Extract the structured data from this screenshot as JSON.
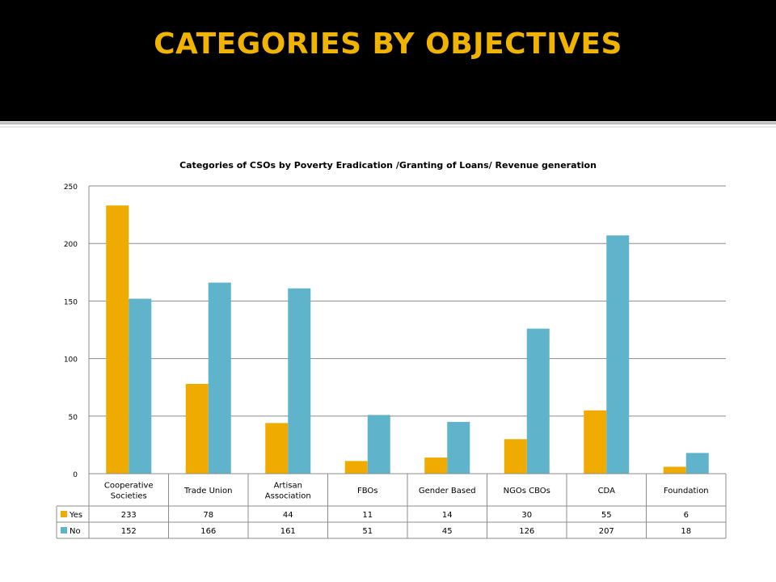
{
  "slide": {
    "title": "CATEGORIES BY OBJECTIVES"
  },
  "colors": {
    "header_bg": "#000000",
    "title": "#f0b400",
    "yes": "#f0ab00",
    "no": "#5fb4cc"
  },
  "chart_data": {
    "type": "bar",
    "title": "Categories of CSOs by Poverty Eradication /Granting of Loans/ Revenue generation",
    "xlabel": "",
    "ylabel": "",
    "ylim": [
      0,
      250
    ],
    "yticks": [
      0,
      50,
      100,
      150,
      200,
      250
    ],
    "grid": true,
    "legend": "data-table",
    "categories": [
      "Cooperative Societies",
      "Trade Union",
      "Artisan Association",
      "FBOs",
      "Gender Based",
      "NGOs CBOs",
      "CDA",
      "Foundation"
    ],
    "category_lines": [
      [
        "Cooperative",
        "Societies"
      ],
      [
        "Trade Union"
      ],
      [
        "Artisan",
        "Association"
      ],
      [
        "FBOs"
      ],
      [
        "Gender Based"
      ],
      [
        "NGOs CBOs"
      ],
      [
        "CDA"
      ],
      [
        "Foundation"
      ]
    ],
    "series": [
      {
        "name": "Yes",
        "color": "#f0ab00",
        "values": [
          233,
          78,
          44,
          11,
          14,
          30,
          55,
          6
        ]
      },
      {
        "name": "No",
        "color": "#5fb4cc",
        "values": [
          152,
          166,
          161,
          51,
          45,
          126,
          207,
          18
        ]
      }
    ]
  }
}
